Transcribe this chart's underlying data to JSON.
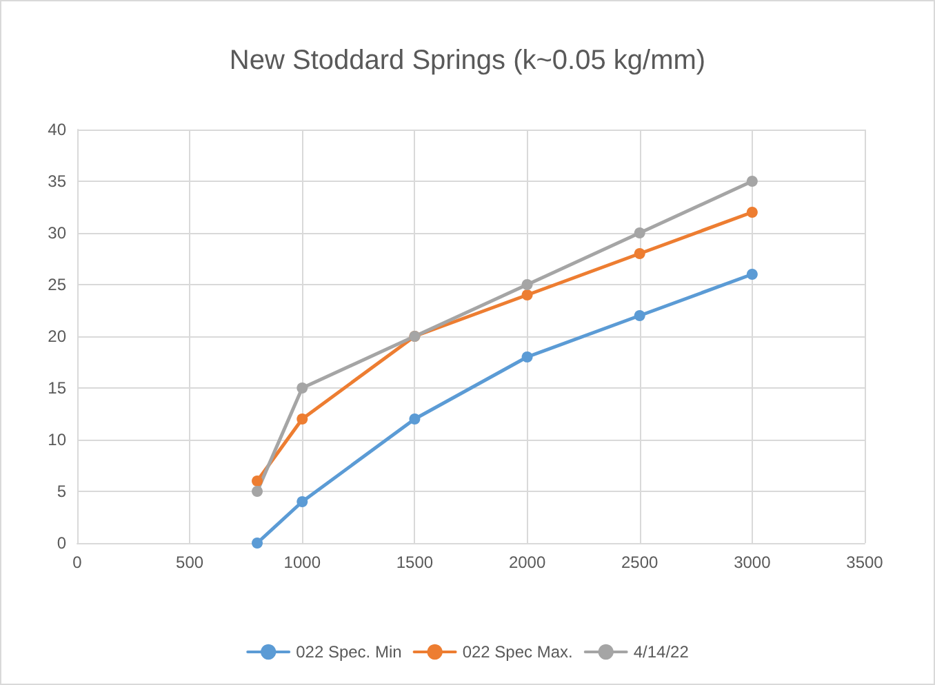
{
  "chart_data": {
    "type": "line",
    "title": "New Stoddard Springs (k~0.05 kg/mm)",
    "x": [
      800,
      1000,
      1500,
      2000,
      2500,
      3000
    ],
    "series": [
      {
        "name": "022 Spec. Min",
        "color": "#5b9bd5",
        "values": [
          0,
          4,
          12,
          18,
          22,
          26
        ]
      },
      {
        "name": "022 Spec Max.",
        "color": "#ed7d31",
        "values": [
          6,
          12,
          20,
          24,
          28,
          32
        ]
      },
      {
        "name": "4/14/22",
        "color": "#a5a5a5",
        "values": [
          5,
          15,
          20,
          25,
          30,
          35
        ]
      }
    ],
    "xlim": [
      0,
      3500
    ],
    "xticks": [
      0,
      500,
      1000,
      1500,
      2000,
      2500,
      3000,
      3500
    ],
    "ylim": [
      0,
      40
    ],
    "yticks": [
      0,
      5,
      10,
      15,
      20,
      25,
      30,
      35,
      40
    ],
    "grid": true,
    "legend": "bottom",
    "marker": "circle",
    "line_style": "solid"
  }
}
